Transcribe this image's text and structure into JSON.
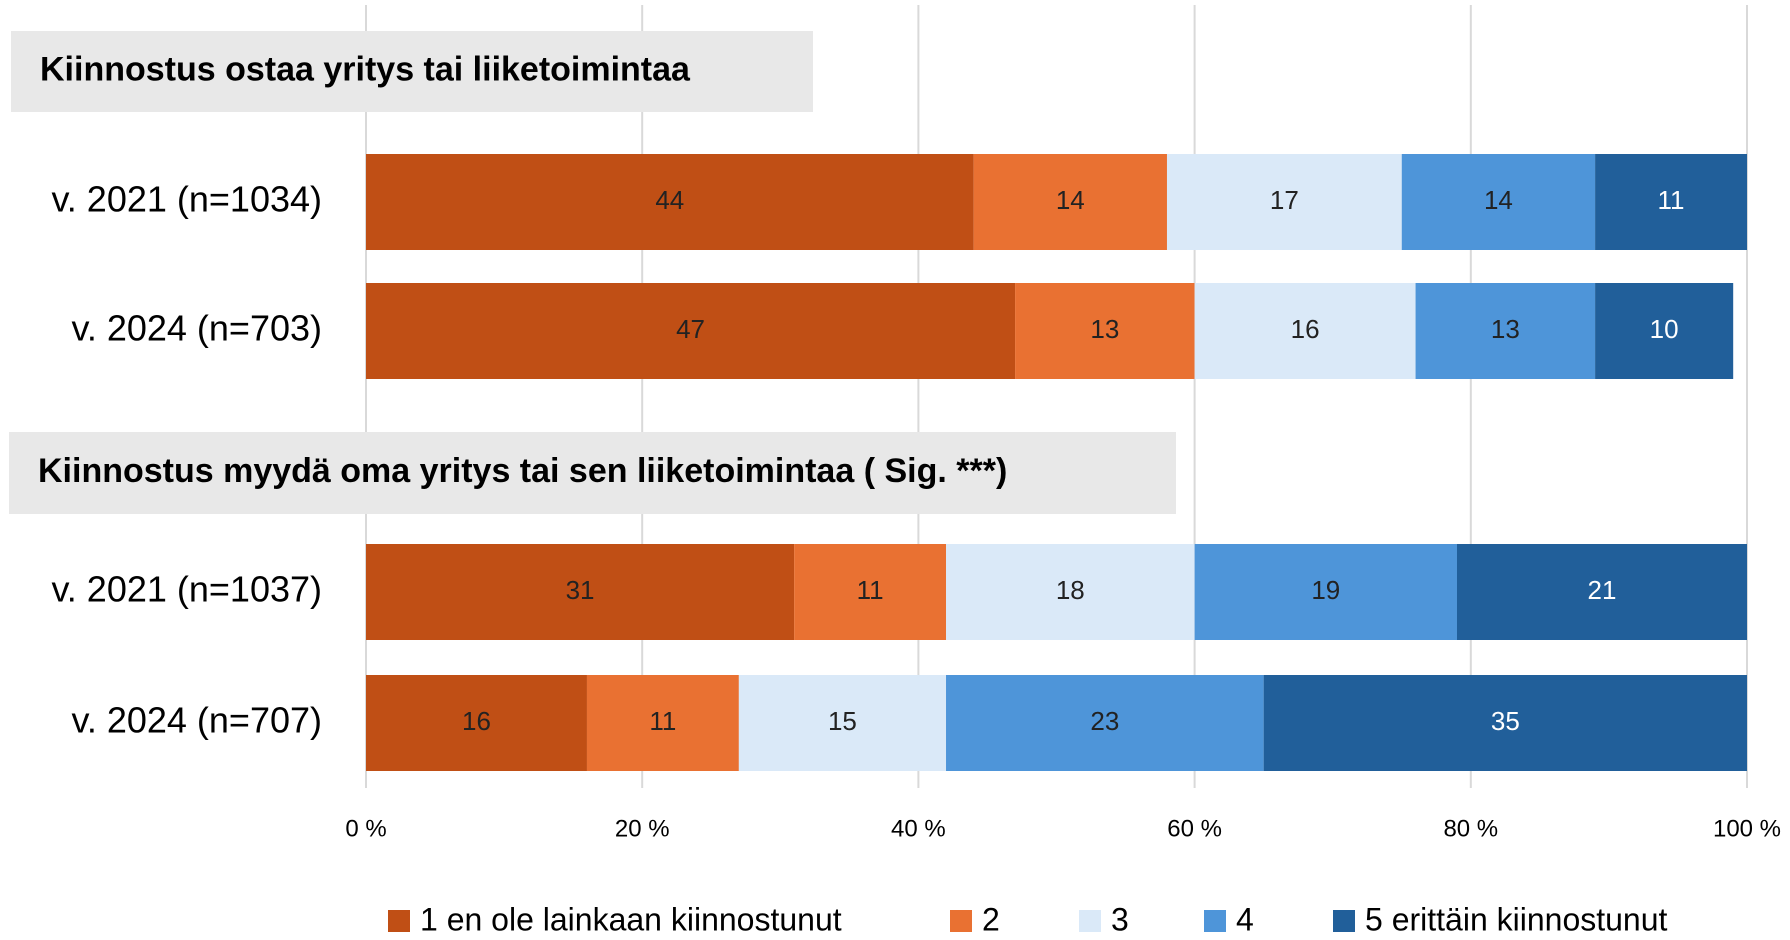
{
  "chart_data": {
    "type": "bar",
    "orientation": "horizontal",
    "stacked": true,
    "groups": [
      {
        "title": "Kiinnostus ostaa yritys tai liiketoimintaa",
        "categories": [
          "v. 2021 (n=1034)",
          "v. 2024 (n=703)"
        ]
      },
      {
        "title": "Kiinnostus myydä oma yritys tai sen liiketoimintaa ( Sig. ***)",
        "categories": [
          "v. 2021 (n=1037)",
          "v. 2024 (n=707)"
        ]
      }
    ],
    "series": [
      {
        "name": "1 en ole lainkaan kiinnostunut",
        "color": "#c04f15",
        "label_color": "#222222",
        "values": [
          [
            44,
            47
          ],
          [
            31,
            16
          ]
        ]
      },
      {
        "name": "2",
        "color": "#e97132",
        "label_color": "#222222",
        "values": [
          [
            14,
            13
          ],
          [
            11,
            11
          ]
        ]
      },
      {
        "name": "3",
        "color": "#dae9f8",
        "label_color": "#222222",
        "values": [
          [
            17,
            16
          ],
          [
            18,
            15
          ]
        ]
      },
      {
        "name": "4",
        "color": "#4e95d9",
        "label_color": "#222222",
        "values": [
          [
            14,
            13
          ],
          [
            19,
            23
          ]
        ]
      },
      {
        "name": "5 erittäin kiinnostunut",
        "color": "#215f9a",
        "label_color": "#ffffff",
        "values": [
          [
            11,
            10
          ],
          [
            21,
            35
          ]
        ]
      }
    ],
    "xlim": [
      0,
      100
    ],
    "xticks": [
      {
        "value": 0,
        "label": "0 %"
      },
      {
        "value": 20,
        "label": "20 %"
      },
      {
        "value": 40,
        "label": "40 %"
      },
      {
        "value": 60,
        "label": "60 %"
      },
      {
        "value": 80,
        "label": "80 %"
      },
      {
        "value": 100,
        "label": "100 %"
      }
    ],
    "grid": true,
    "legend": "bottom"
  }
}
